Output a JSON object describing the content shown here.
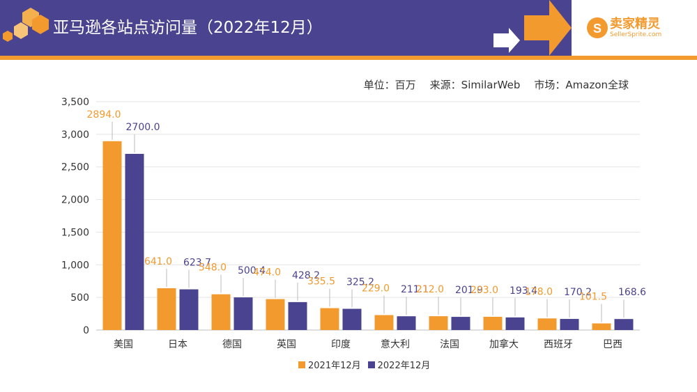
{
  "header": {
    "title": "亚马逊各站点访问量（2022年12月）",
    "logo_name": "卖家精灵",
    "logo_url_text": "SellerSprite.com"
  },
  "meta": {
    "unit": "单位：百万",
    "source": "来源：SimilarWeb",
    "market": "市场：Amazon全球"
  },
  "colors": {
    "header_bg": "#4a4390",
    "accent_orange": "#f29a2e",
    "series_2021": "#f29a2e",
    "series_2022": "#4a4390"
  },
  "chart_data": {
    "type": "bar",
    "categories": [
      "美国",
      "日本",
      "德国",
      "英国",
      "印度",
      "意大利",
      "法国",
      "加拿大",
      "西班牙",
      "巴西"
    ],
    "series": [
      {
        "name": "2021年12月",
        "values": [
          2894.0,
          641.0,
          548.0,
          474.0,
          335.5,
          229.0,
          212.0,
          203.0,
          178.0,
          101.5
        ],
        "labels": [
          "2894.0",
          "641.0",
          "548.0",
          "474.0",
          "335.5",
          "229.0",
          "212.0",
          "203.0",
          "178.0",
          "101.5"
        ]
      },
      {
        "name": "2022年12月",
        "values": [
          2700.0,
          623.7,
          500.4,
          428.2,
          325.2,
          211.1,
          201.9,
          193.4,
          170.2,
          168.6
        ],
        "labels": [
          "2700.0",
          "623.7",
          "500.4",
          "428.2",
          "325.2",
          "211.1",
          "201.9",
          "193.4",
          "170.2",
          "168.6"
        ]
      }
    ],
    "y_ticks": [
      "0",
      "500",
      "1,000",
      "1,500",
      "2,000",
      "2,500",
      "3,000",
      "3,500"
    ],
    "ylim": [
      0,
      3500
    ],
    "grid": true,
    "legend_position": "bottom"
  }
}
